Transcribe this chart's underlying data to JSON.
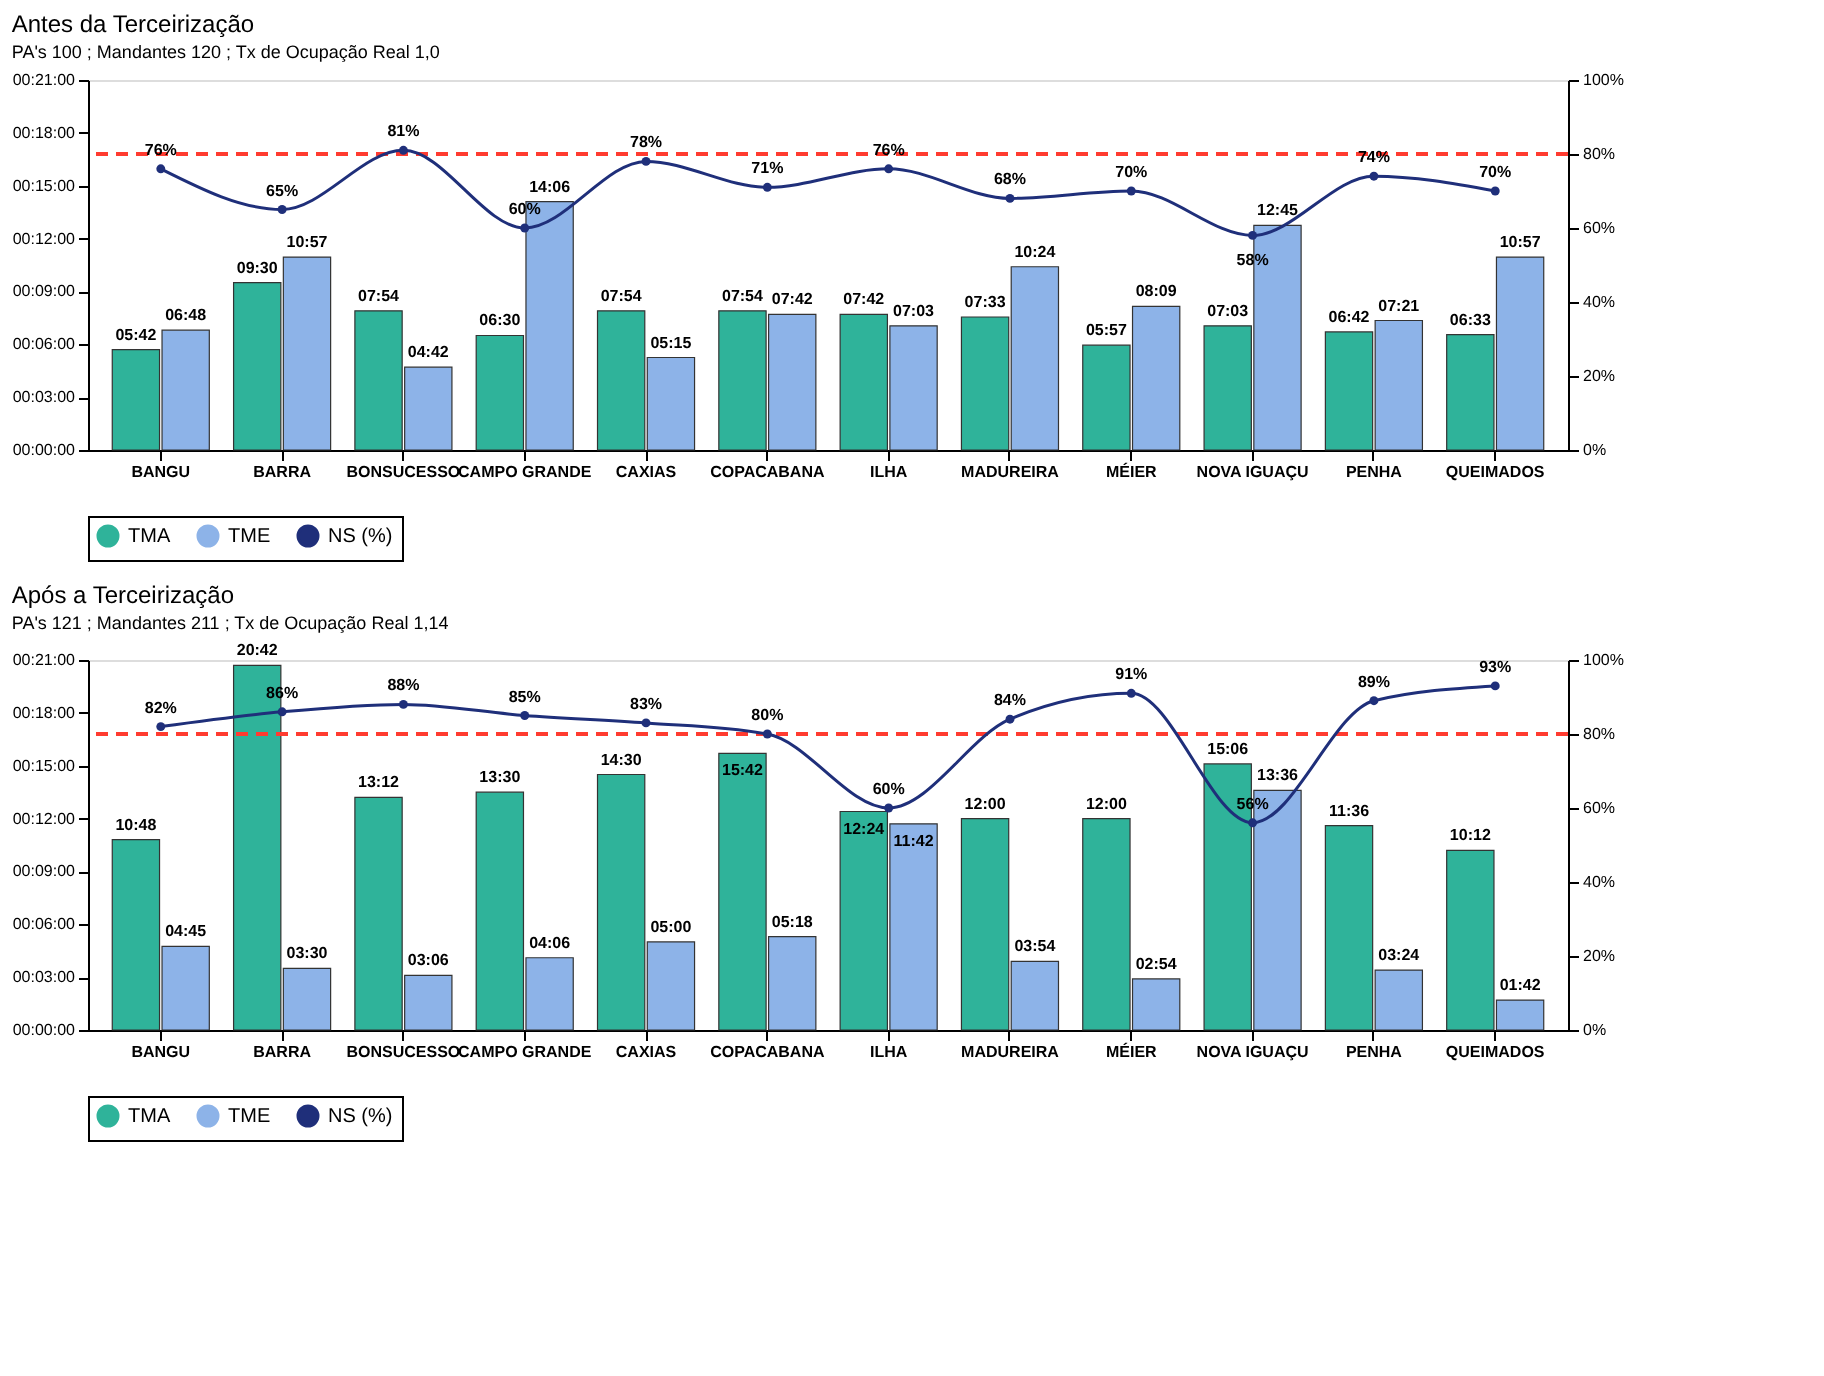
{
  "chart_data": [
    {
      "type": "bar",
      "title": "Antes da Terceirização",
      "subtitle": "PA's 100 ; Mandantes 120 ; Tx de Ocupação Real 1,0",
      "categories": [
        "BANGU",
        "BARRA",
        "BONSUCESSO",
        "CAMPO GRANDE",
        "CAXIAS",
        "COPACABANA",
        "ILHA",
        "MADUREIRA",
        "MÉIER",
        "NOVA IGUAÇU",
        "PENHA",
        "QUEIMADOS"
      ],
      "series": [
        {
          "name": "TMA",
          "color": "#2fb39a",
          "values": [
            5.7,
            9.5,
            7.9,
            6.5,
            7.9,
            7.9,
            7.7,
            7.55,
            5.95,
            7.05,
            6.7,
            6.55
          ],
          "value_labels": [
            "05:42",
            "09:30",
            "07:54",
            "06:30",
            "07:54",
            "07:54",
            "07:42",
            "07:33",
            "05:57",
            "07:03",
            "06:42",
            "06:33"
          ]
        },
        {
          "name": "TME",
          "color": "#8db3e8",
          "values": [
            6.8,
            10.95,
            4.7,
            14.1,
            5.25,
            7.7,
            7.05,
            10.4,
            8.15,
            12.75,
            7.35,
            10.95
          ],
          "value_labels": [
            "06:48",
            "10:57",
            "04:42",
            "14:06",
            "05:15",
            "07:42",
            "07:03",
            "10:24",
            "08:09",
            "12:45",
            "07:21",
            "10:57"
          ]
        },
        {
          "name": "NS (%)",
          "type": "line",
          "axis": "y2",
          "color": "#1f2f7a",
          "marker": "circle",
          "values": [
            76,
            65,
            81,
            60,
            78,
            71,
            76,
            68,
            70,
            58,
            74,
            70
          ],
          "value_labels": [
            "76%",
            "65%",
            "81%",
            "60%",
            "78%",
            "71%",
            "76%",
            "68%",
            "70%",
            "58%",
            "74%",
            "70%"
          ]
        }
      ],
      "ylim": [
        0,
        21
      ],
      "yticks": [
        {
          "value": 0,
          "label": "00:00:00"
        },
        {
          "value": 3,
          "label": "00:03:00"
        },
        {
          "value": 6,
          "label": "00:06:00"
        },
        {
          "value": 9,
          "label": "00:09:00"
        },
        {
          "value": 12,
          "label": "00:12:00"
        },
        {
          "value": 15,
          "label": "00:15:00"
        },
        {
          "value": 18,
          "label": "00:18:00"
        },
        {
          "value": 21,
          "label": "00:21:00"
        }
      ],
      "y2lim": [
        0,
        100
      ],
      "y2ticks": [
        {
          "value": 0,
          "label": "0%"
        },
        {
          "value": 20,
          "label": "20%"
        },
        {
          "value": 40,
          "label": "40%"
        },
        {
          "value": 60,
          "label": "60%"
        },
        {
          "value": 80,
          "label": "80%"
        },
        {
          "value": 100,
          "label": "100%"
        }
      ],
      "ref_lines": [
        {
          "axis": "y2",
          "value": 80,
          "label": null,
          "color": "#ff3b30",
          "line_style": "dashed"
        }
      ],
      "grid": false,
      "legend": "bottom"
    },
    {
      "type": "bar",
      "title": "Após a Terceirização",
      "subtitle": "PA's 121 ; Mandantes 211 ; Tx de Ocupação Real 1,14",
      "categories": [
        "BANGU",
        "BARRA",
        "BONSUCESSO",
        "CAMPO GRANDE",
        "CAXIAS",
        "COPACABANA",
        "ILHA",
        "MADUREIRA",
        "MÉIER",
        "NOVA IGUAÇU",
        "PENHA",
        "QUEIMADOS"
      ],
      "series": [
        {
          "name": "TMA",
          "color": "#2fb39a",
          "values": [
            10.8,
            20.7,
            13.2,
            13.5,
            14.5,
            15.7,
            12.4,
            12.0,
            12.0,
            15.1,
            11.6,
            10.2
          ],
          "value_labels": [
            "10:48",
            "20:42",
            "13:12",
            "13:30",
            "14:30",
            "15:42",
            "12:24",
            "12:00",
            "12:00",
            "15:06",
            "11:36",
            "10:12"
          ]
        },
        {
          "name": "TME",
          "color": "#8db3e8",
          "values": [
            4.75,
            3.5,
            3.1,
            4.1,
            5.0,
            5.3,
            11.7,
            3.9,
            2.9,
            13.6,
            3.4,
            1.7
          ],
          "value_labels": [
            "04:45",
            "03:30",
            "03:06",
            "04:06",
            "05:00",
            "05:18",
            "11:42",
            "03:54",
            "02:54",
            "13:36",
            "03:24",
            "01:42"
          ]
        },
        {
          "name": "NS (%)",
          "type": "line",
          "axis": "y2",
          "color": "#1f2f7a",
          "marker": "circle",
          "values": [
            82,
            86,
            88,
            85,
            83,
            80,
            60,
            84,
            91,
            56,
            89,
            93
          ],
          "value_labels": [
            "82%",
            "86%",
            "88%",
            "85%",
            "83%",
            "80%",
            "60%",
            "84%",
            "91%",
            "56%",
            "89%",
            "93%"
          ]
        }
      ],
      "ylim": [
        0,
        21
      ],
      "yticks": [
        {
          "value": 0,
          "label": "00:00:00"
        },
        {
          "value": 3,
          "label": "00:03:00"
        },
        {
          "value": 6,
          "label": "00:06:00"
        },
        {
          "value": 9,
          "label": "00:09:00"
        },
        {
          "value": 12,
          "label": "00:12:00"
        },
        {
          "value": 15,
          "label": "00:15:00"
        },
        {
          "value": 18,
          "label": "00:18:00"
        },
        {
          "value": 21,
          "label": "00:21:00"
        }
      ],
      "y2lim": [
        0,
        100
      ],
      "y2ticks": [
        {
          "value": 0,
          "label": "0%"
        },
        {
          "value": 20,
          "label": "20%"
        },
        {
          "value": 40,
          "label": "40%"
        },
        {
          "value": 60,
          "label": "60%"
        },
        {
          "value": 80,
          "label": "80%"
        },
        {
          "value": 100,
          "label": "100%"
        }
      ],
      "ref_lines": [
        {
          "axis": "y2",
          "value": 80,
          "label": null,
          "color": "#ff3b30",
          "line_style": "dashed"
        }
      ],
      "grid": false,
      "legend": "bottom"
    }
  ]
}
